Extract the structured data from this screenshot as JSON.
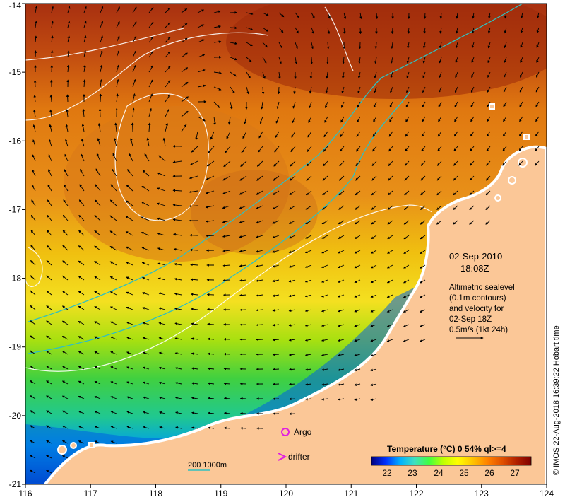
{
  "map": {
    "x_ticks": [
      "116",
      "117",
      "118",
      "119",
      "120",
      "121",
      "122",
      "123",
      "124"
    ],
    "y_ticks": [
      "-14",
      "-15",
      "-16",
      "-17",
      "-18",
      "-19",
      "-20",
      "-21"
    ],
    "x_range": [
      116,
      124
    ],
    "y_range": [
      -21,
      -14
    ]
  },
  "annotation": {
    "date": "02-Sep-2010",
    "time": "18:08Z",
    "lines": [
      "Altimetric sealevel",
      "(0.1m contours)",
      "and velocity for",
      "02-Sep 18Z",
      "0.5m/s (1kt 24h)"
    ]
  },
  "legend": {
    "argo_label": "Argo",
    "drifter_label": "drifter",
    "depth_label": "200  1000m"
  },
  "colorbar": {
    "title": "Temperature (°C) 0 54% ql>=4",
    "ticks": [
      "22",
      "23",
      "24",
      "25",
      "26",
      "27"
    ],
    "colors": [
      "#00007f",
      "#0030ff",
      "#00b0ff",
      "#40e0c0",
      "#40ff40",
      "#c0ff00",
      "#ffff00",
      "#ffc000",
      "#ff8000",
      "#e05000",
      "#b02000",
      "#7f0000"
    ]
  },
  "credit": "© IMOS 22-Aug-2018 16:39:22 Hobart time"
}
